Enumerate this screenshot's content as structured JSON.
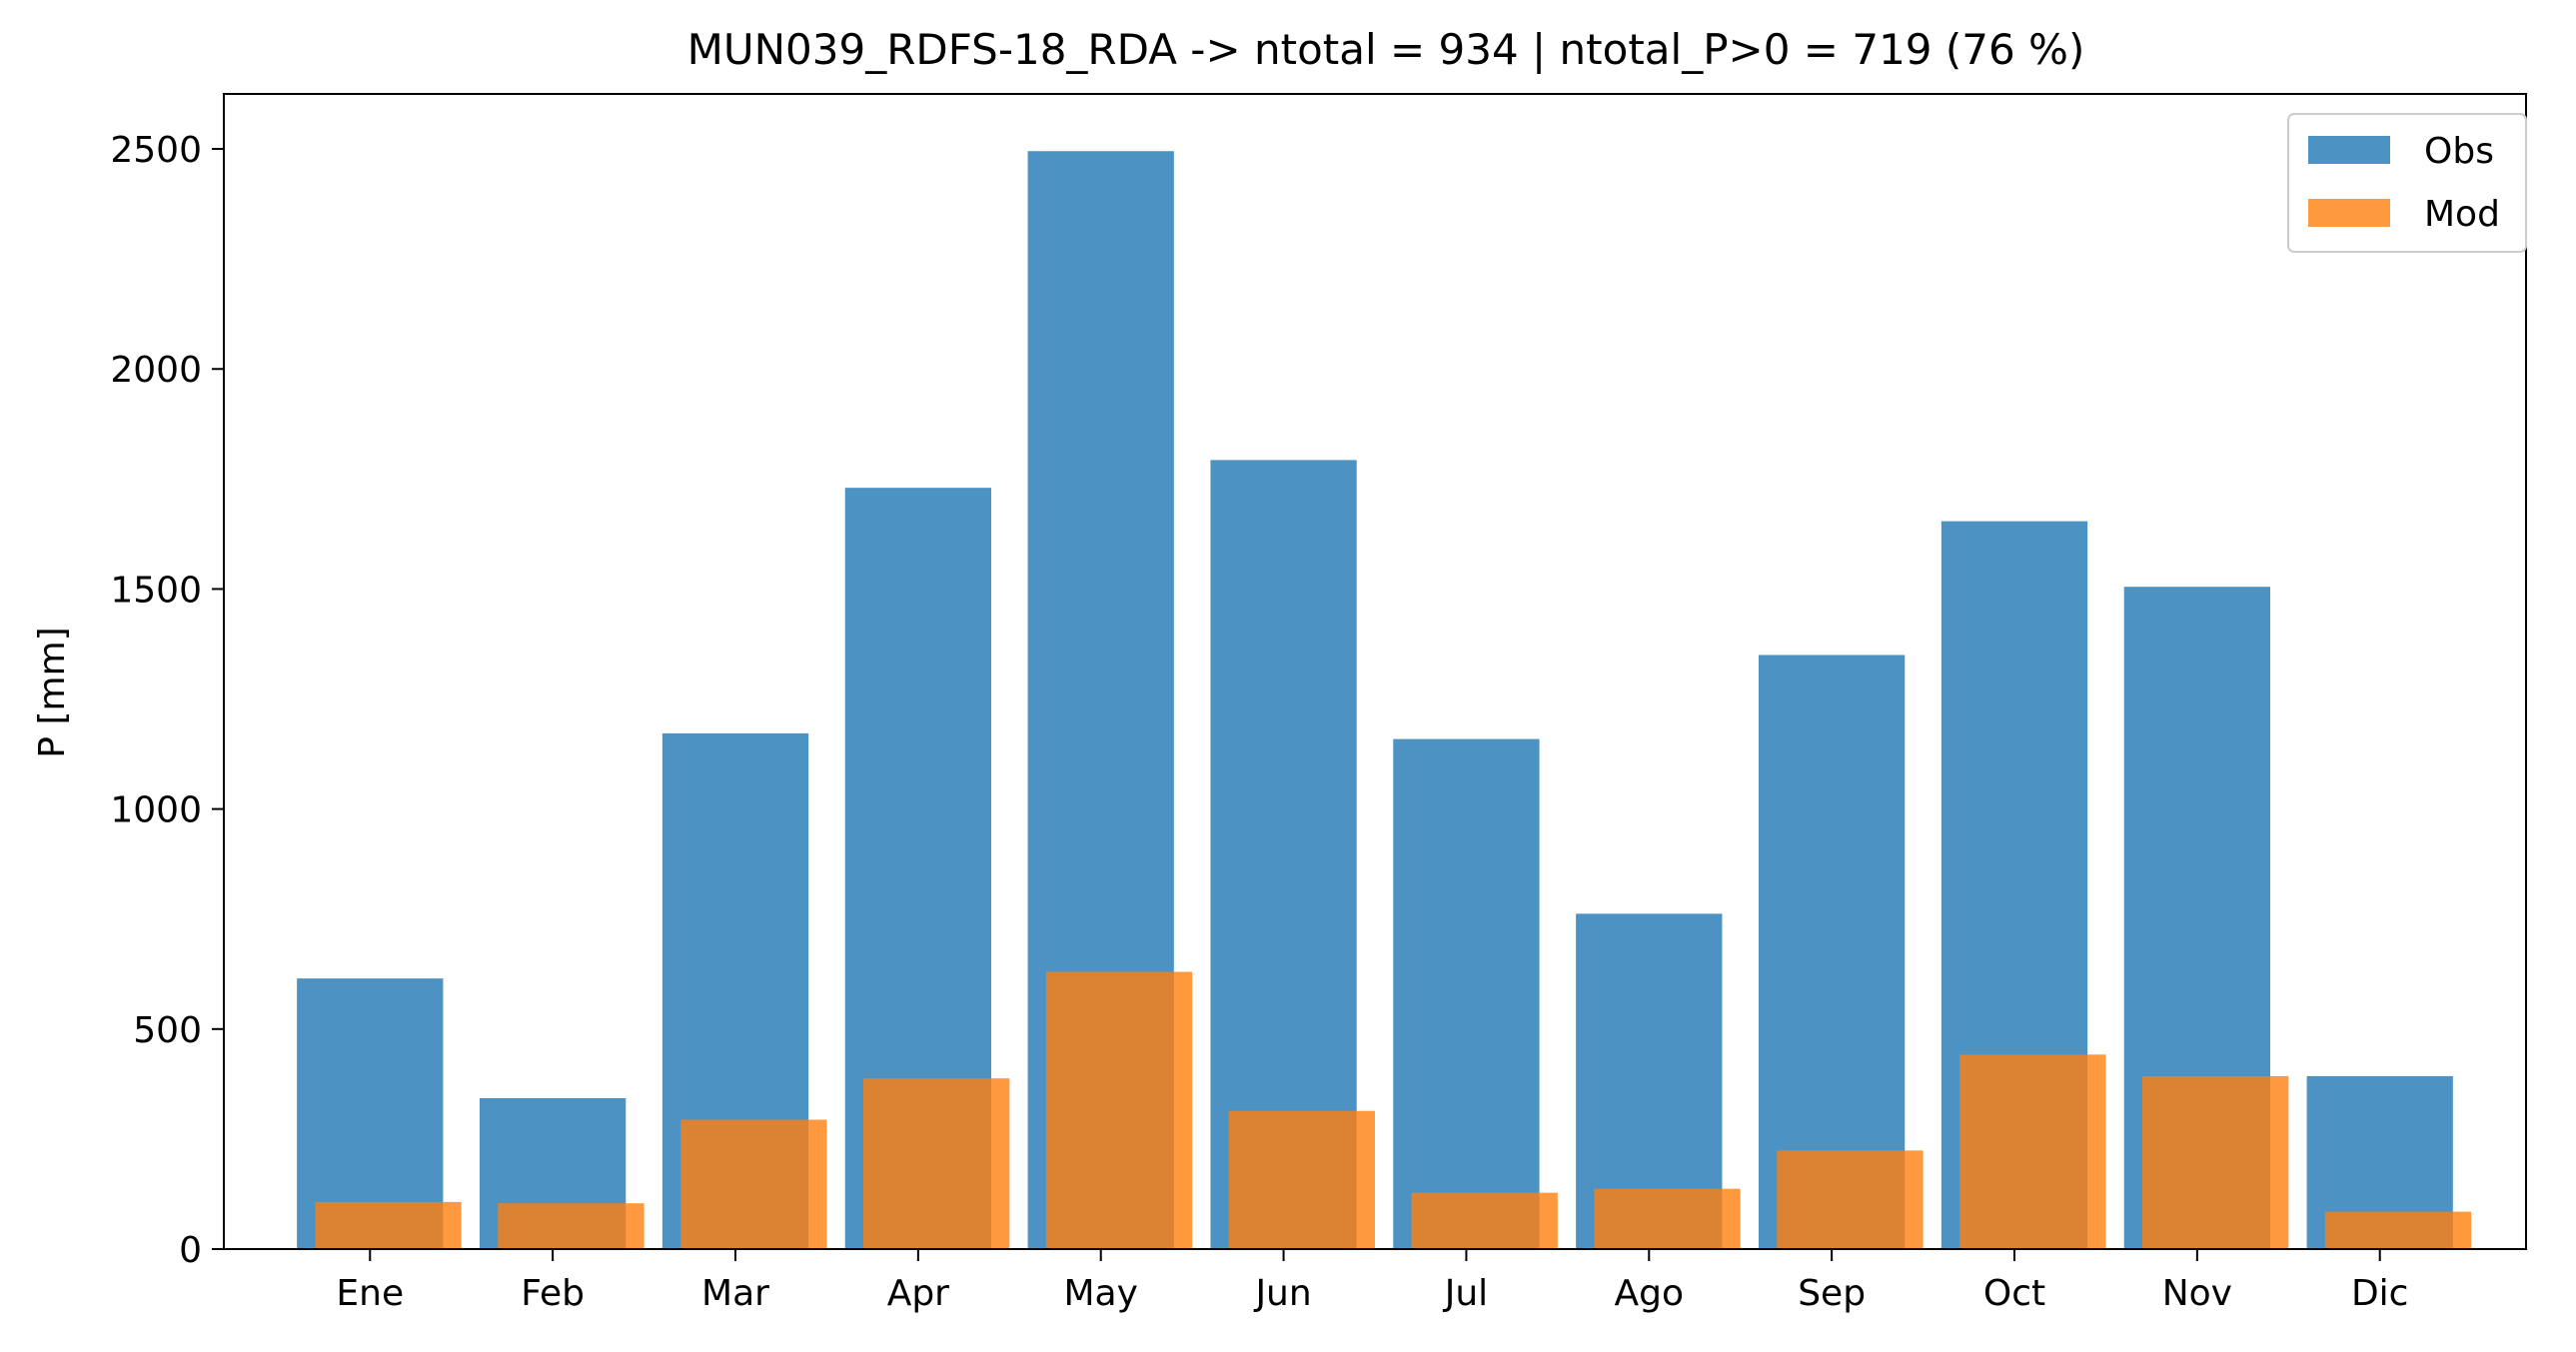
{
  "chart_data": {
    "type": "bar",
    "title": "MUN039_RDFS-18_RDA -> ntotal = 934 | ntotal_P>0 = 719 (76 %)",
    "xlabel": "",
    "ylabel": "P [mm]",
    "categories": [
      "Ene",
      "Feb",
      "Mar",
      "Apr",
      "May",
      "Jun",
      "Jul",
      "Ago",
      "Sep",
      "Oct",
      "Nov",
      "Dic"
    ],
    "series": [
      {
        "name": "Obs",
        "color": "#1f77b4",
        "values": [
          615,
          343,
          1172,
          1730,
          2495,
          1793,
          1159,
          762,
          1350,
          1654,
          1505,
          393
        ]
      },
      {
        "name": "Mod",
        "color": "#ff7f0e",
        "values": [
          107,
          104,
          294,
          388,
          630,
          314,
          128,
          137,
          224,
          442,
          393,
          85
        ]
      }
    ],
    "yticks": [
      0,
      500,
      1000,
      1500,
      2000,
      2500
    ],
    "ylim": [
      0,
      2625
    ],
    "grid": false,
    "legend_position": "upper right"
  }
}
